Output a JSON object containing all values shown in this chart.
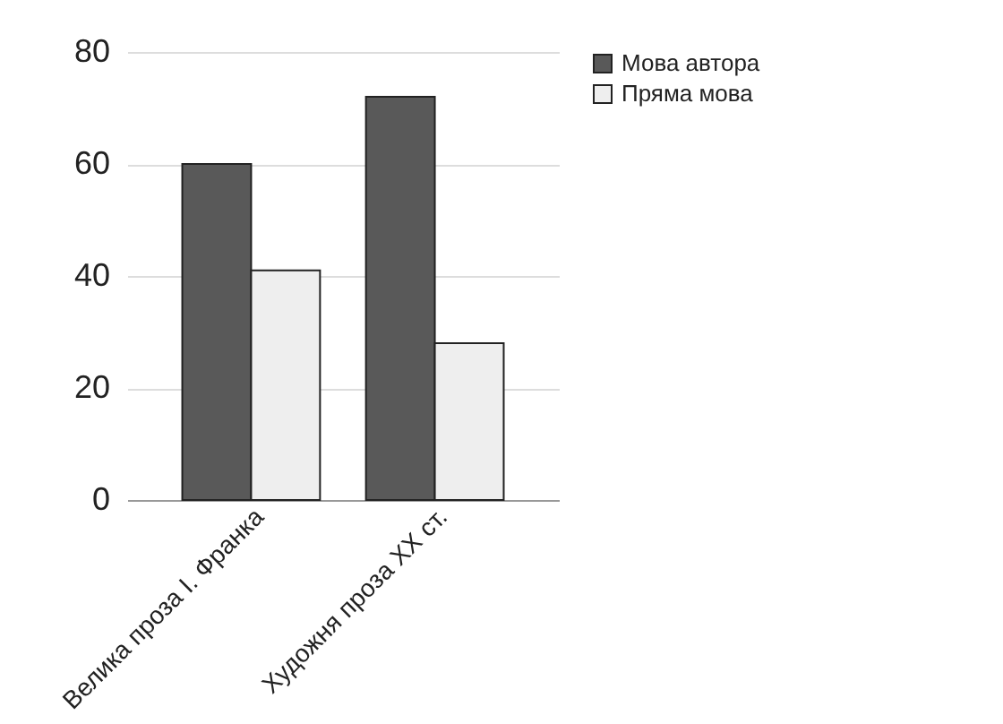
{
  "chart_data": {
    "type": "bar",
    "categories": [
      "Велика проза І. Франка",
      "Художня проза XX ст."
    ],
    "series": [
      {
        "name": "Мова автора",
        "color": "#595959",
        "values": [
          60,
          72
        ]
      },
      {
        "name": "Пряма мова",
        "color": "#eeeeee",
        "values": [
          41,
          28
        ]
      }
    ],
    "ylim": [
      0,
      80
    ],
    "yticks": [
      0,
      20,
      40,
      60,
      80
    ],
    "grid": "y",
    "legend": "right"
  }
}
